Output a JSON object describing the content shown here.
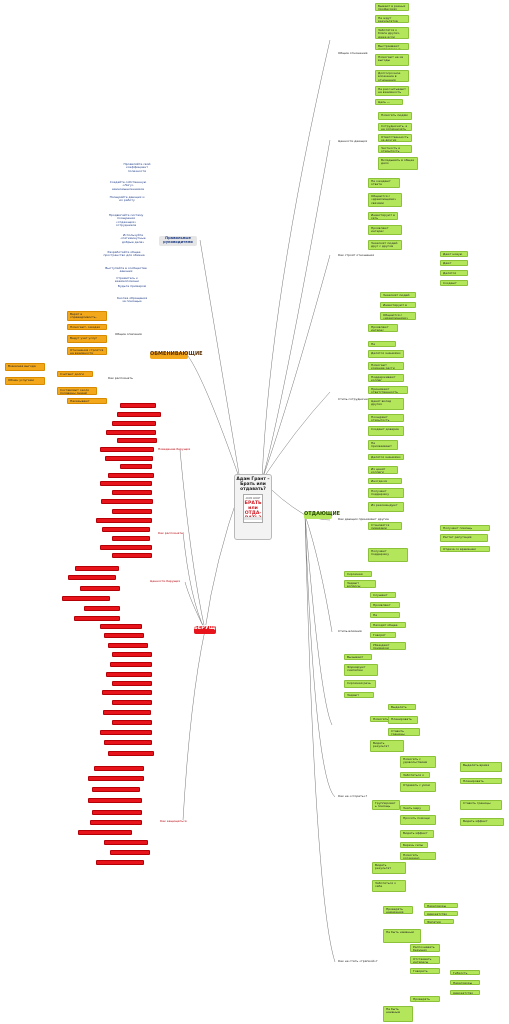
{
  "central": {
    "title": "Адам Грант – Брать или отдавать?"
  },
  "branches": {
    "otdayushchie": "ОТДАЮЩИЕ",
    "obmenivayushchie": "ОБМЕНИВАЮЩИЕ",
    "berushchie": "БЕРУЩИЕ",
    "pravilnye": "Правильные руководители"
  },
  "green": {
    "g1_label": "Общие отношения",
    "g1": [
      "Бывают в разных профессиях",
      "Не ждут результатов немедленно",
      "Заботятся о благе других, даже если упускают",
      "Выстраивают долгосрочные связи",
      "Помогают не из выгоды",
      "Долгосрочное вложение в отношения",
      "Не рассчитывают на взаимность",
      "Цель — общее благо"
    ],
    "g2_label": "Ценности дающих",
    "g2": [
      "Помогать людям",
      "Сотрудничать, а не соперничать",
      "Ответственность за других",
      "Честность и открытость",
      "Вкладывать в общее дело"
    ],
    "g3_label": "Как строят отношения",
    "g3": [
      "Не ожидают ответа",
      "Общаются с «дремлющими» связями",
      "Инвестируют в сеть",
      "Проявляют интерес",
      "Знакомят людей друг с другом"
    ],
    "g3_sub": [
      "Дают новую цель",
      "Дают ресурсы",
      "Делятся опытом",
      "Создают доверие"
    ],
    "g4_label": "Стиль сотрудничества",
    "g4": [
      "Не присваивают заслуги",
      "Делятся знаниями",
      "Помогают команде расти",
      "Поддерживают коллег",
      "Принимают ответственность",
      "Ценят вклад других",
      "Поощряют открытость",
      "Создают доверие"
    ],
    "g5_label": "Как дающих принимают другие",
    "g5": [
      "Их ценят коллеги",
      "Иногда их используют",
      "Получают поддержку",
      "Их рекомендуют",
      "Становятся лидерами"
    ],
    "g5_sub": [
      "Получают помощь",
      "Растет репутация",
      "Отдача со временем"
    ],
    "g6_label": "Стиль влияния",
    "g6": [
      "Скромная речь",
      "Задают вопросы",
      "Слушают собеседника",
      "Проявляют уязвимость",
      "Не навязывают",
      "Находят общее",
      "Говорят предварительно",
      "Убеждают примером",
      "Вызывают доверие",
      "Формируют симпатию"
    ],
    "g7_label": "Как не «сгореть»?",
    "g7": [
      "Помогать осознанно",
      "Видеть результат",
      "Помогать с удовольствием",
      "Заботиться о себе",
      "Отдавать с умом",
      "Группировать помощь",
      "Знать меру",
      "Просить помощи"
    ],
    "g7_sub": [
      "Выделять время",
      "Планировать",
      "Ставить границы",
      "Видеть эффект",
      "Беречь силы"
    ],
    "g8_label": "Как не стать «тряпкой»?",
    "g8": [
      "Проверять намерения",
      "Не быть наивным",
      "Распознавать берущих",
      "Отстаивать интересы",
      "Говорить «нет»"
    ],
    "g8_sub": [
      "Переговоры",
      "Адвокатство",
      "Эмпатия",
      "Гибкость"
    ]
  },
  "orange": {
    "o1_label": "Общие описания",
    "o1": [
      "Верят в справедливость, баланс отдачи и получения",
      "Помогают, ожидая ответа",
      "Ведут учет услуг",
      "Отношения строятся на взаимности"
    ],
    "o2_label": "Как распознать",
    "o2": [
      "Взаимная выгода",
      "Обмен услугами",
      "Считают долги"
    ],
    "o3": [
      "Составляют около половины людей",
      "Наказывают берущих"
    ]
  },
  "blue": [
    "Проявляйте свой коэффициент полезности",
    "Создайте собственную «Лигу» единомышленников",
    "Поощряйте дающих и их работу",
    "Продвигайте систему поощрения «отдающих» сотрудников",
    "Используйте «пятиминутные добрые дела»",
    "Разработайте общее пространство для обмена",
    "Выступайте в сообществе дающих",
    "Стремитесь к взаимопомощи",
    "Будьте примером",
    "Кнопка обращения за помощью"
  ],
  "red": {
    "label": "Берущие",
    "r1": "Поведение берущих",
    "r2": "Как распознать",
    "r3": "Ценности берущих",
    "r4": "Как защищаться"
  }
}
